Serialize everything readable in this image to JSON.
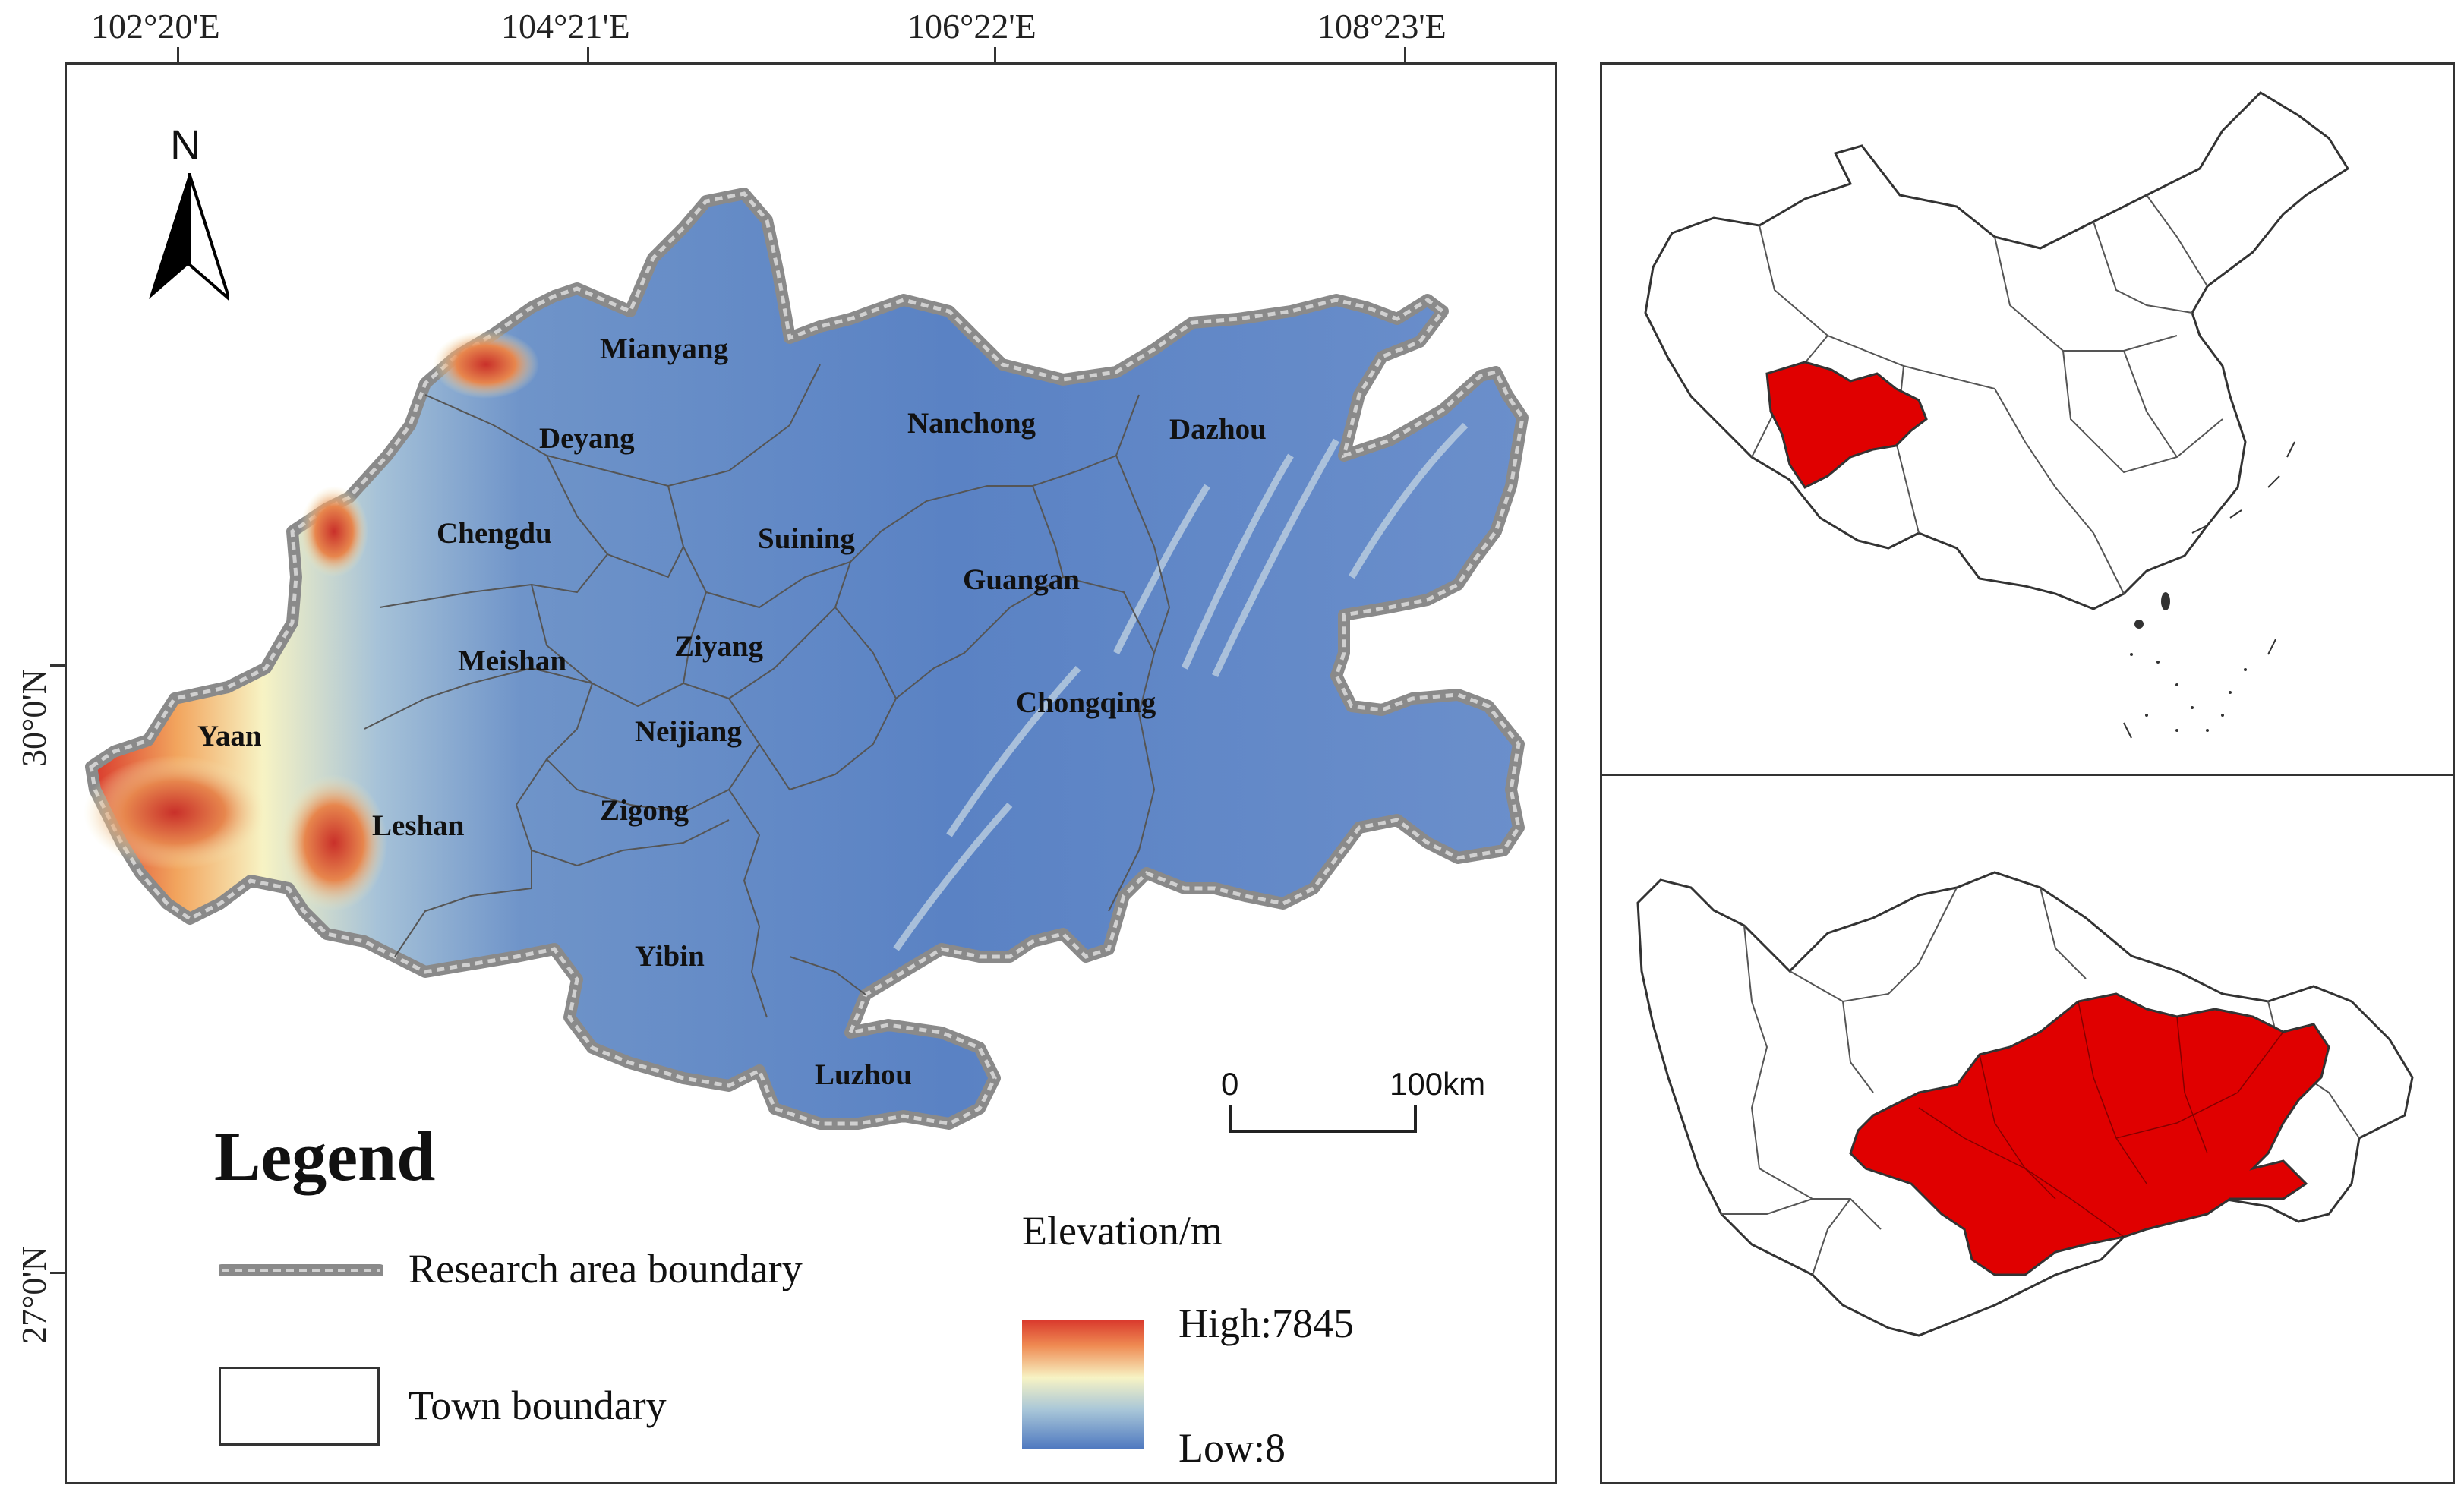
{
  "main_map": {
    "top_longitudes": [
      "102°20'E",
      "104°21'E",
      "106°22'E",
      "108°23'E"
    ],
    "left_latitudes": [
      "30°0'N",
      "27°0'N"
    ],
    "north_label": "N",
    "cities": [
      {
        "name": "Mianyang"
      },
      {
        "name": "Deyang"
      },
      {
        "name": "Chengdu"
      },
      {
        "name": "Nanchong"
      },
      {
        "name": "Dazhou"
      },
      {
        "name": "Suining"
      },
      {
        "name": "Guangan"
      },
      {
        "name": "Meishan"
      },
      {
        "name": "Ziyang"
      },
      {
        "name": "Neijiang"
      },
      {
        "name": "Chongqing"
      },
      {
        "name": "Yaan"
      },
      {
        "name": "Leshan"
      },
      {
        "name": "Zigong"
      },
      {
        "name": "Yibin"
      },
      {
        "name": "Luzhou"
      }
    ],
    "scale_bar": {
      "start": "0",
      "end": "100km"
    }
  },
  "legend": {
    "title": "Legend",
    "research_boundary": "Research area boundary",
    "town_boundary": "Town boundary",
    "elevation_title": "Elevation/m",
    "high": "High:7845",
    "low": "Low:8"
  },
  "colors": {
    "elevation_low": "#4f79c0",
    "elevation_mid": "#f7f3c4",
    "elevation_high": "#d9382c",
    "highlight": "#e00000"
  }
}
